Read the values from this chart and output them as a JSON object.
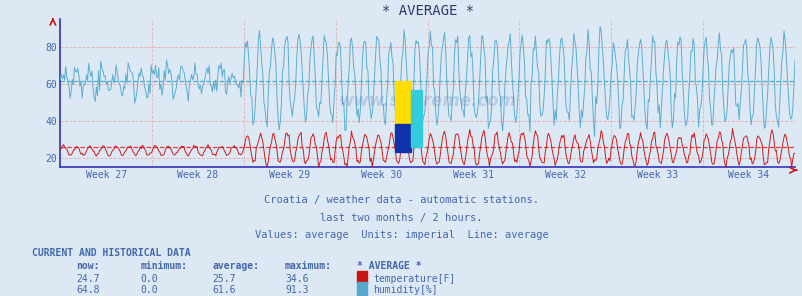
{
  "title": "* AVERAGE *",
  "background_color": "#dce9f5",
  "plot_bg_color": "#dce9f5",
  "x_label_weeks": [
    "Week 27",
    "Week 28",
    "Week 29",
    "Week 30",
    "Week 31",
    "Week 32",
    "Week 33",
    "Week 34"
  ],
  "y_ticks": [
    20,
    40,
    60,
    80
  ],
  "y_min": 15,
  "y_max": 95,
  "temp_color": "#cc1111",
  "humidity_color": "#55aacc",
  "temp_avg_line": 25.7,
  "humidity_avg_line": 61.6,
  "temp_avg_color": "#dd3333",
  "humidity_avg_color": "#44aacc",
  "grid_color_h": "#ee9999",
  "grid_color_v": "#ddaaaa",
  "subtitle1": "Croatia / weather data - automatic stations.",
  "subtitle2": "last two months / 2 hours.",
  "subtitle3": "Values: average  Units: imperial  Line: average",
  "subtitle_color": "#4466aa",
  "watermark": "www.si-vreme.com",
  "table_header": "CURRENT AND HISTORICAL DATA",
  "col_headers": [
    "now:",
    "minimum:",
    "average:",
    "maximum:",
    "* AVERAGE *"
  ],
  "row1": [
    "24.7",
    "0.0",
    "25.7",
    "34.6"
  ],
  "row2": [
    "64.8",
    "0.0",
    "61.6",
    "91.3"
  ],
  "label1": "temperature[F]",
  "label2": "humidity[%]",
  "n_points": 672,
  "weeks": 8,
  "temp_base": 25.0,
  "temp_amp": 8.0,
  "humidity_base": 62.0,
  "humidity_amp": 22.0,
  "axis_color": "#3333bb",
  "tick_color": "#4466aa",
  "spine_color": "#3333bb"
}
